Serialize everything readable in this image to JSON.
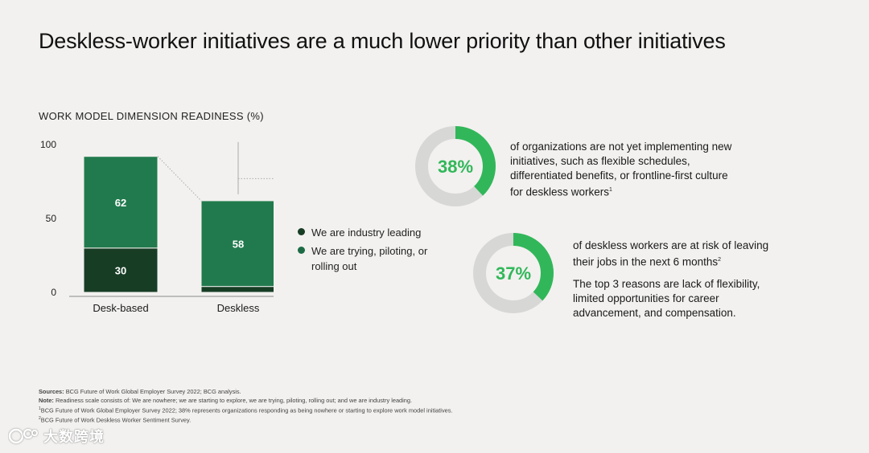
{
  "title": "Deskless-worker initiatives are a much lower priority than other initiatives",
  "colors": {
    "dark_green": "#173d25",
    "mid_green": "#217a4d",
    "bright_green": "#31b75a",
    "ring_gray": "#d7d7d5",
    "background": "#f2f1ef"
  },
  "chart_data": {
    "type": "bar",
    "stacked": true,
    "title": "WORK MODEL DIMENSION READINESS (%)",
    "categories": [
      "Desk-based",
      "Deskless"
    ],
    "series": [
      {
        "name": "We are industry leading",
        "values": [
          30,
          4
        ]
      },
      {
        "name": "We are trying, piloting, or rolling out",
        "values": [
          62,
          58
        ]
      }
    ],
    "ylim": [
      0,
      100
    ],
    "yticks": [
      0,
      50,
      100
    ],
    "xlabel": "",
    "ylabel": ""
  },
  "legend": {
    "items": [
      {
        "label": "We are industry leading",
        "color": "#173d25"
      },
      {
        "label": "We are trying, piloting, or rolling out",
        "color": "#217a4d"
      }
    ]
  },
  "stats": [
    {
      "value": 38,
      "label": "38%",
      "text": "of organizations are not yet implementing new initiatives, such as flexible schedules, differentiated benefits, or frontline-first culture for deskless workers",
      "note": "1"
    },
    {
      "value": 37,
      "label": "37%",
      "text": "of deskless workers are at risk of leaving their jobs in the next 6 months",
      "note": "2",
      "extra": "The top 3 reasons are lack of flexibility, limited opportunities for career advancement, and compensation."
    }
  ],
  "footer": {
    "sources_label": "Sources:",
    "sources": "BCG Future of Work Global Employer Survey 2022; BCG analysis.",
    "note_label": "Note:",
    "note": "Readiness scale consists of: We are nowhere; we are starting to explore, we are trying, piloting, rolling out; and we are industry leading.",
    "fn1_mark": "1",
    "fn1": "BCG Future of Work Global Employer Survey 2022; 38% represents organizations responding as being nowhere or starting to explore work model initiatives.",
    "fn2_mark": "2",
    "fn2": "BCG Future of Work Deskless Worker Sentiment Survey."
  },
  "watermark": {
    "text": "大数跨境",
    "icon": "logo-icon"
  }
}
